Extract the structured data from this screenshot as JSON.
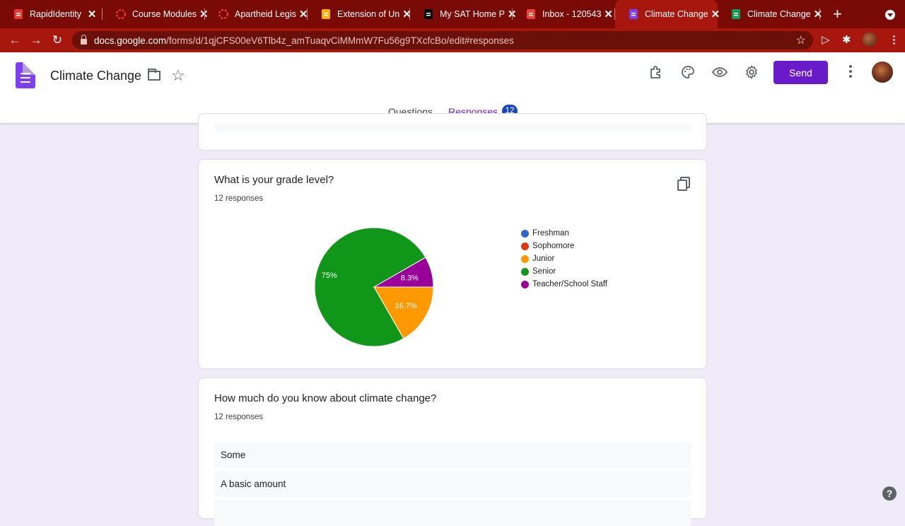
{
  "browser": {
    "tabs": [
      {
        "title": "RapidIdentity",
        "favicon": "rapididentity-icon",
        "color": "#e53935"
      },
      {
        "title": "Course Modules",
        "favicon": "canvas-icon",
        "color": "#e53935"
      },
      {
        "title": "Apartheid Legis",
        "favicon": "canvas-icon",
        "color": "#e53935"
      },
      {
        "title": "Extension of Un",
        "favicon": "slides-icon",
        "color": "#f4b400"
      },
      {
        "title": "My SAT Home P",
        "favicon": "collegeboard-icon",
        "color": "#000000"
      },
      {
        "title": "Inbox - 120543",
        "favicon": "gmail-icon",
        "color": "#ea4335"
      },
      {
        "title": "Climate Change",
        "favicon": "forms-icon",
        "color": "#7e3ff2"
      },
      {
        "title": "Climate Change",
        "favicon": "sheets-icon",
        "color": "#0f9d58"
      }
    ],
    "url_host": "docs.google.com",
    "url_path": "/forms/d/1qjCFS00eV6Tlb4z_amTuaqvCiMMmW7Fu56g9TXcfcBo/edit#responses"
  },
  "header": {
    "title": "Climate Change",
    "send_label": "Send",
    "tabs": {
      "questions": "Questions",
      "responses": "Responses",
      "responses_count": "12"
    }
  },
  "questions": [
    {
      "title": "What is your grade level?",
      "count_text": "12 responses",
      "chart_data": {
        "type": "pie",
        "title": "What is your grade level?",
        "categories": [
          "Freshman",
          "Sophomore",
          "Junior",
          "Senior",
          "Teacher/School Staff"
        ],
        "colors": [
          "#3366cc",
          "#dc3912",
          "#ff9900",
          "#109618",
          "#990099"
        ],
        "values": [
          0,
          0,
          16.7,
          75,
          8.3
        ],
        "labels": [
          "",
          "",
          "16.7%",
          "75%",
          "8.3%"
        ],
        "legend_position": "right"
      }
    },
    {
      "title": "How much do you know about climate change?",
      "count_text": "12 responses",
      "answers": [
        "Some",
        "A basic amount"
      ]
    }
  ]
}
